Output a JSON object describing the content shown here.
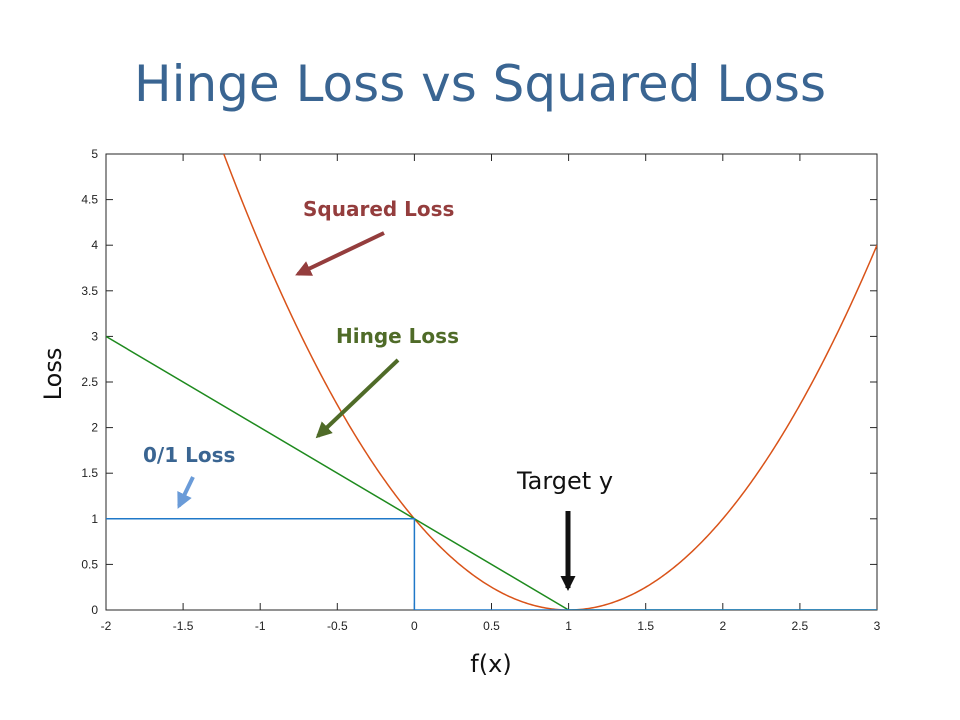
{
  "slide": {
    "title": "Hinge Loss vs Squared Loss"
  },
  "colors": {
    "title": "#3A6592",
    "squared": "#D95319",
    "hinge": "#1E8A1E",
    "zero_one": "#1F78C8",
    "squared_callout": "#943D3D",
    "hinge_callout": "#4F6B28",
    "zero_one_callout": "#3A6592",
    "zero_one_arrow": "#6A9BD8"
  },
  "chart_data": {
    "type": "line",
    "xlabel": "f(x)",
    "ylabel": "Loss",
    "xlim": [
      -2,
      3
    ],
    "ylim": [
      0,
      5
    ],
    "xticks": [
      "-2",
      "-1.5",
      "-1",
      "-0.5",
      "0",
      "0.5",
      "1",
      "1.5",
      "2",
      "2.5",
      "3"
    ],
    "yticks": [
      "0",
      "0.5",
      "1",
      "1.5",
      "2",
      "2.5",
      "3",
      "3.5",
      "4",
      "4.5",
      "5"
    ],
    "series": [
      {
        "name": "Squared Loss",
        "x": [
          -1.236,
          -1,
          -0.75,
          -0.5,
          -0.25,
          0,
          0.25,
          0.5,
          0.75,
          1,
          1.25,
          1.5,
          1.75,
          2,
          2.25,
          2.5,
          2.75,
          3
        ],
        "y": [
          5,
          4,
          3.0625,
          2.25,
          1.5625,
          1,
          0.5625,
          0.25,
          0.0625,
          0,
          0.0625,
          0.25,
          0.5625,
          1,
          1.5625,
          2.25,
          3.0625,
          4
        ]
      },
      {
        "name": "Hinge Loss",
        "x": [
          -2,
          1,
          3
        ],
        "y": [
          3,
          0,
          0
        ]
      },
      {
        "name": "0/1 Loss",
        "x": [
          -2,
          0,
          0,
          3
        ],
        "y": [
          1,
          1,
          0,
          0
        ]
      }
    ],
    "annotations": [
      {
        "text": "Squared Loss",
        "kind": "callout-squared"
      },
      {
        "text": "Hinge Loss",
        "kind": "callout-hinge"
      },
      {
        "text": "0/1 Loss",
        "kind": "callout-zero-one"
      },
      {
        "text": "Target y",
        "kind": "target"
      }
    ]
  }
}
